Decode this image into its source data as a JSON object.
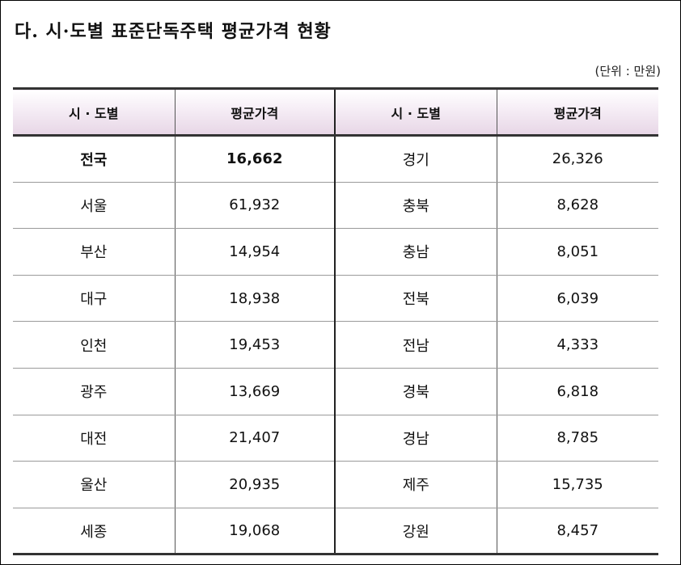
{
  "title": "다. 시·도별 표준단독주택 평균가격 현황",
  "unit": "(단위 : 만원)",
  "headers": [
    "시 · 도별",
    "평균가격",
    "시 · 도별",
    "평균가격"
  ],
  "rows": [
    {
      "region1": "전국",
      "price1": "16,662",
      "region2": "경기",
      "price2": "26,326"
    },
    {
      "region1": "서울",
      "price1": "61,932",
      "region2": "충북",
      "price2": "8,628"
    },
    {
      "region1": "부산",
      "price1": "14,954",
      "region2": "충남",
      "price2": "8,051"
    },
    {
      "region1": "대구",
      "price1": "18,938",
      "region2": "전북",
      "price2": "6,039"
    },
    {
      "region1": "인천",
      "price1": "19,453",
      "region2": "전남",
      "price2": "4,333"
    },
    {
      "region1": "광주",
      "price1": "13,669",
      "region2": "경북",
      "price2": "6,818"
    },
    {
      "region1": "대전",
      "price1": "21,407",
      "region2": "경남",
      "price2": "8,785"
    },
    {
      "region1": "울산",
      "price1": "20,935",
      "region2": "제주",
      "price2": "15,735"
    },
    {
      "region1": "세종",
      "price1": "19,068",
      "region2": "강원",
      "price2": "8,457"
    }
  ]
}
